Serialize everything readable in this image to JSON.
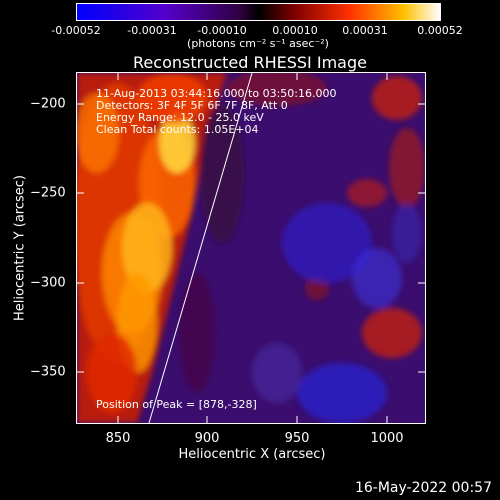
{
  "colorbar": {
    "ticks": [
      "-0.00052",
      "-0.00031",
      "-0.00010",
      "0.00010",
      "0.00031",
      "0.00052"
    ],
    "units": "(photons cm⁻² s⁻¹ asec⁻²)"
  },
  "plot": {
    "title": "Reconstructed RHESSI Image",
    "xlabel": "Heliocentric X (arcsec)",
    "ylabel": "Heliocentric Y (arcsec)",
    "xticks": [
      "850",
      "900",
      "950",
      "1000"
    ],
    "yticks": [
      "−200",
      "−250",
      "−300",
      "−350"
    ],
    "info": {
      "time": "11-Aug-2013 03:44:16.000 to 03:50:16.000",
      "detectors": "Detectors: 3F 4F 5F 6F 7F 8F, Att 0",
      "energy": "Energy Range: 12.0 - 25.0 keV",
      "clean": "Clean     Total counts: 1.05E+04"
    },
    "peak": "Position of Peak = [878,-328]"
  },
  "timestamp": "16-May-2022 00:57"
}
